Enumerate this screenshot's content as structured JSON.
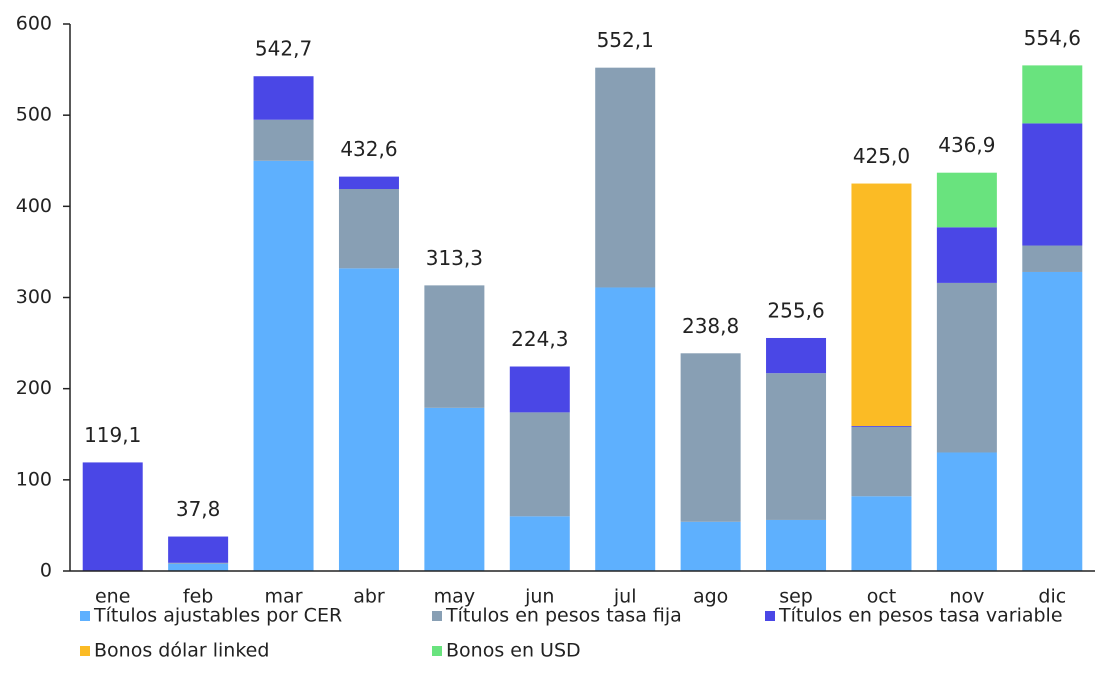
{
  "chart_data": {
    "type": "stacked_bar",
    "categories": [
      "ene",
      "feb",
      "mar",
      "abr",
      "may",
      "jun",
      "jul",
      "ago",
      "sep",
      "oct",
      "nov",
      "dic"
    ],
    "series": [
      {
        "name": "Títulos ajustables por CER",
        "color": "#5eb0fe",
        "values": [
          0,
          8,
          450,
          332,
          179,
          60,
          311,
          54,
          56,
          82,
          130,
          328
        ]
      },
      {
        "name": "Títulos en pesos tasa fija",
        "color": "#889fb4",
        "values": [
          0,
          1,
          45,
          87,
          134.3,
          114,
          241.1,
          184.8,
          161,
          76,
          186,
          29
        ]
      },
      {
        "name": "Títulos en pesos tasa variable",
        "color": "#4a47e6",
        "values": [
          119.1,
          28.8,
          47.7,
          13.6,
          0,
          50.3,
          0,
          0,
          38.6,
          1,
          61,
          134
        ]
      },
      {
        "name": "Bonos dólar linked",
        "color": "#fbbb25",
        "values": [
          0,
          0,
          0,
          0,
          0,
          0,
          0,
          0,
          0,
          266,
          0,
          0
        ]
      },
      {
        "name": "Bonos en USD",
        "color": "#69e37e",
        "values": [
          0,
          0,
          0,
          0,
          0,
          0,
          0,
          0,
          0,
          0,
          59.9,
          63.6
        ]
      }
    ],
    "totals": [
      119.1,
      37.8,
      542.7,
      432.6,
      313.3,
      224.3,
      552.1,
      238.8,
      255.6,
      425.0,
      436.9,
      554.6
    ],
    "total_labels": [
      "119,1",
      "37,8",
      "542,7",
      "432,6",
      "313,3",
      "224,3",
      "552,1",
      "238,8",
      "255,6",
      "425,0",
      "436,9",
      "554,6"
    ],
    "ylim": [
      0,
      600
    ],
    "yticks": [
      0,
      100,
      200,
      300,
      400,
      500,
      600
    ],
    "grid": false
  }
}
